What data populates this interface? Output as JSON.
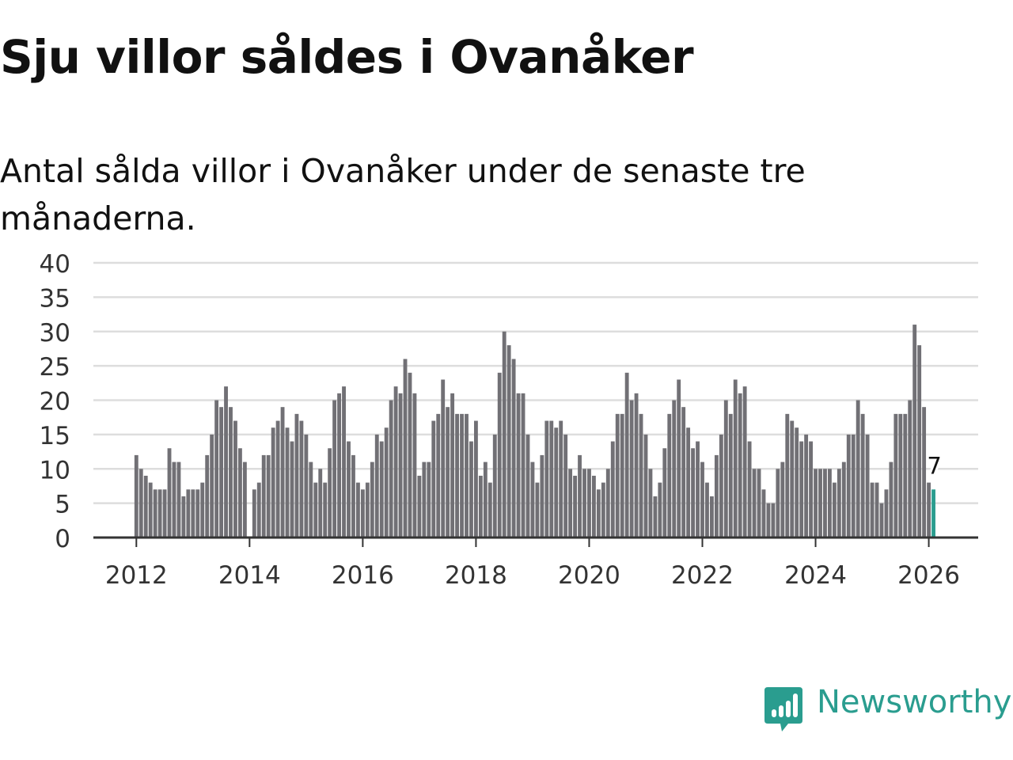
{
  "header": {
    "title": "Sju villor såldes i Ovanåker",
    "subtitle": "Antal sålda villor i Ovanåker under de senaste tre månaderna."
  },
  "branding": {
    "name": "Newsworthy",
    "color": "#2a9d8f"
  },
  "chart_data": {
    "type": "bar",
    "title": "Sju villor såldes i Ovanåker",
    "subtitle": "Antal sålda villor i Ovanåker under de senaste tre månaderna.",
    "xlabel": "",
    "ylabel": "",
    "ylim": [
      0,
      40
    ],
    "yticks": [
      0,
      5,
      10,
      15,
      20,
      25,
      30,
      35,
      40
    ],
    "xticks": [
      "2012",
      "2014",
      "2016",
      "2018",
      "2020",
      "2022",
      "2024",
      "2026"
    ],
    "grid": true,
    "start": "2012-01",
    "frequency": "monthly",
    "bar_color": "#717075",
    "highlight_color": "#2a9d8f",
    "highlight_label": "7",
    "values": [
      12,
      10,
      9,
      8,
      7,
      7,
      7,
      13,
      11,
      11,
      6,
      7,
      7,
      7,
      8,
      12,
      15,
      20,
      19,
      22,
      19,
      17,
      13,
      11,
      0,
      7,
      8,
      12,
      12,
      16,
      17,
      19,
      16,
      14,
      18,
      17,
      15,
      11,
      8,
      10,
      8,
      13,
      20,
      21,
      22,
      14,
      12,
      8,
      7,
      8,
      11,
      15,
      14,
      16,
      20,
      22,
      21,
      26,
      24,
      21,
      9,
      11,
      11,
      17,
      18,
      23,
      19,
      21,
      18,
      18,
      18,
      14,
      17,
      9,
      11,
      8,
      15,
      24,
      30,
      28,
      26,
      21,
      21,
      15,
      11,
      8,
      12,
      17,
      17,
      16,
      17,
      15,
      10,
      9,
      12,
      10,
      10,
      9,
      7,
      8,
      10,
      14,
      18,
      18,
      24,
      20,
      21,
      18,
      15,
      10,
      6,
      8,
      13,
      18,
      20,
      23,
      19,
      16,
      13,
      14,
      11,
      8,
      6,
      12,
      15,
      20,
      18,
      23,
      21,
      22,
      14,
      10,
      10,
      7,
      5,
      5,
      10,
      11,
      18,
      17,
      16,
      14,
      15,
      14,
      10,
      10,
      10,
      10,
      8,
      10,
      11,
      15,
      15,
      20,
      18,
      15,
      8,
      8,
      5,
      7,
      11,
      18,
      18,
      18,
      20,
      31,
      28,
      19,
      8,
      7
    ]
  }
}
